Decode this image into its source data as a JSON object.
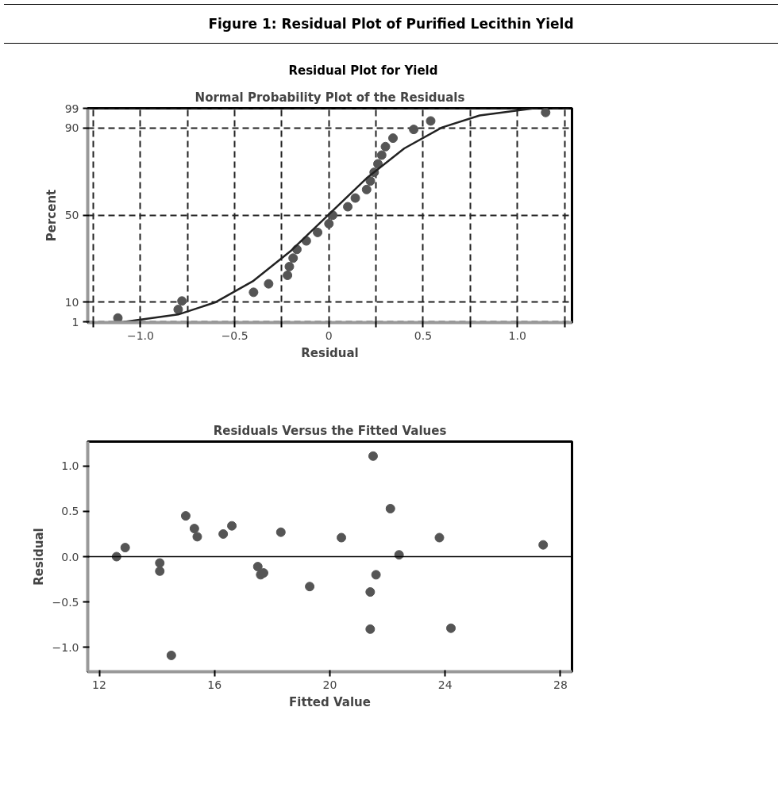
{
  "chart_data": [
    {
      "type": "scatter",
      "title": "Normal Probability Plot of the Residuals",
      "annotations": [
        "Figure 1: Residual Plot of Purified Lecithin Yield",
        "Residual Plot for Yield"
      ],
      "xlabel": "Residual",
      "ylabel": "Percent",
      "xlim": [
        -1.28,
        1.29
      ],
      "xticks": [
        {
          "value": -1.25,
          "label": null
        },
        {
          "value": -1,
          "label": "−1.0"
        },
        {
          "value": -0.75,
          "label": null
        },
        {
          "value": -0.5,
          "label": "−0.5"
        },
        {
          "value": -0.25,
          "label": null
        },
        0,
        {
          "value": 0.25,
          "label": null
        },
        0.5,
        {
          "value": 0.75,
          "label": null
        },
        {
          "value": 1,
          "label": "1.0"
        },
        {
          "value": 1.25,
          "label": null
        }
      ],
      "ylim": [
        0.7,
        99.1
      ],
      "yticks": [
        1,
        10,
        50,
        90,
        99
      ],
      "grid": true,
      "marker": "circle",
      "series": [
        {
          "color": "#555555",
          "x": [
            -1.12,
            -0.8,
            -0.78,
            -0.4,
            -0.32,
            -0.22,
            -0.21,
            -0.19,
            -0.17,
            -0.12,
            -0.06,
            0.0,
            0.02,
            0.1,
            0.14,
            0.2,
            0.22,
            0.24,
            0.26,
            0.28,
            0.3,
            0.34,
            0.45,
            0.54,
            1.15
          ],
          "values": [
            2.8,
            6.7,
            10.6,
            14.6,
            18.5,
            22.4,
            26.4,
            30.3,
            34.3,
            38.2,
            42.1,
            46.1,
            50.0,
            53.9,
            57.9,
            61.8,
            65.7,
            69.7,
            73.6,
            77.6,
            81.5,
            85.4,
            89.4,
            93.3,
            97.2
          ]
        },
        {
          "type": "line",
          "marker": "none",
          "color": "#222222",
          "x": [
            -1.09,
            -0.8,
            -0.6,
            -0.4,
            -0.2,
            0,
            0.2,
            0.4,
            0.6,
            0.8,
            1.08
          ],
          "values": [
            1,
            4.4,
            10.1,
            19.9,
            33.8,
            50.4,
            67.0,
            80.7,
            90.3,
            95.8,
            99
          ]
        }
      ]
    },
    {
      "type": "scatter",
      "title": "Residuals Versus the Fitted Values",
      "xlabel": "Fitted Value",
      "ylabel": "Residual",
      "xlim": [
        11.6,
        28.4
      ],
      "xticks": [
        12,
        16,
        20,
        24,
        28
      ],
      "ylim": [
        -1.27,
        1.27
      ],
      "yticks": [
        {
          "value": -1,
          "label": "−1.0"
        },
        {
          "value": -0.5,
          "label": "−0.5"
        },
        {
          "value": 0,
          "label": "0.0"
        },
        0.5,
        {
          "value": 1,
          "label": "1.0"
        }
      ],
      "marker": "circle",
      "ref_lines": [
        {
          "axis": "y",
          "value": 0,
          "color": "#000000"
        }
      ],
      "series": [
        {
          "color": "#555555",
          "x": [
            12.6,
            12.9,
            14.1,
            14.1,
            14.5,
            15.0,
            15.3,
            15.4,
            16.3,
            16.6,
            18.3,
            17.5,
            17.6,
            17.7,
            19.3,
            20.4,
            21.5,
            21.6,
            21.4,
            21.4,
            22.1,
            22.4,
            23.8,
            24.2,
            27.4
          ],
          "values": [
            0.0,
            0.1,
            -0.07,
            -0.16,
            -1.09,
            0.45,
            0.31,
            0.22,
            0.25,
            0.34,
            0.27,
            -0.11,
            -0.2,
            -0.18,
            -0.33,
            0.21,
            1.11,
            -0.2,
            -0.39,
            -0.8,
            0.53,
            0.02,
            0.21,
            -0.79,
            0.13
          ]
        }
      ]
    }
  ]
}
